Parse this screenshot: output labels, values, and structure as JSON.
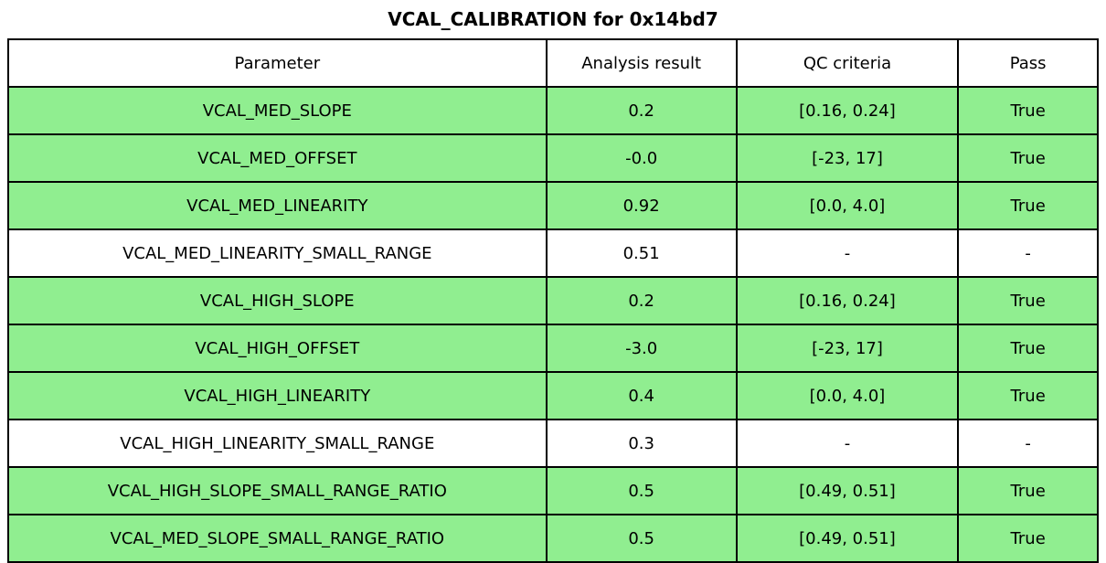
{
  "title": "VCAL_CALIBRATION for 0x14bd7",
  "colors": {
    "pass_green": "#90EE90",
    "row_default": "#FFFFFF",
    "border": "#000000",
    "text": "#000000",
    "background": "#FFFFFF"
  },
  "table": {
    "headers": [
      "Parameter",
      "Analysis result",
      "QC criteria",
      "Pass"
    ],
    "rows": [
      {
        "parameter": "VCAL_MED_SLOPE",
        "result": "0.2",
        "criteria": "[0.16, 0.24]",
        "pass": "True",
        "highlighted": true
      },
      {
        "parameter": "VCAL_MED_OFFSET",
        "result": "-0.0",
        "criteria": "[-23, 17]",
        "pass": "True",
        "highlighted": true
      },
      {
        "parameter": "VCAL_MED_LINEARITY",
        "result": "0.92",
        "criteria": "[0.0, 4.0]",
        "pass": "True",
        "highlighted": true
      },
      {
        "parameter": "VCAL_MED_LINEARITY_SMALL_RANGE",
        "result": "0.51",
        "criteria": "-",
        "pass": "-",
        "highlighted": false
      },
      {
        "parameter": "VCAL_HIGH_SLOPE",
        "result": "0.2",
        "criteria": "[0.16, 0.24]",
        "pass": "True",
        "highlighted": true
      },
      {
        "parameter": "VCAL_HIGH_OFFSET",
        "result": "-3.0",
        "criteria": "[-23, 17]",
        "pass": "True",
        "highlighted": true
      },
      {
        "parameter": "VCAL_HIGH_LINEARITY",
        "result": "0.4",
        "criteria": "[0.0, 4.0]",
        "pass": "True",
        "highlighted": true
      },
      {
        "parameter": "VCAL_HIGH_LINEARITY_SMALL_RANGE",
        "result": "0.3",
        "criteria": "-",
        "pass": "-",
        "highlighted": false
      },
      {
        "parameter": "VCAL_HIGH_SLOPE_SMALL_RANGE_RATIO",
        "result": "0.5",
        "criteria": "[0.49, 0.51]",
        "pass": "True",
        "highlighted": true
      },
      {
        "parameter": "VCAL_MED_SLOPE_SMALL_RANGE_RATIO",
        "result": "0.5",
        "criteria": "[0.49, 0.51]",
        "pass": "True",
        "highlighted": true
      }
    ]
  },
  "chart_data": {
    "type": "table",
    "title": "VCAL_CALIBRATION for 0x14bd7",
    "columns": [
      "Parameter",
      "Analysis result",
      "QC criteria",
      "Pass"
    ],
    "rows": [
      [
        "VCAL_MED_SLOPE",
        "0.2",
        "[0.16, 0.24]",
        "True"
      ],
      [
        "VCAL_MED_OFFSET",
        "-0.0",
        "[-23, 17]",
        "True"
      ],
      [
        "VCAL_MED_LINEARITY",
        "0.92",
        "[0.0, 4.0]",
        "True"
      ],
      [
        "VCAL_MED_LINEARITY_SMALL_RANGE",
        "0.51",
        "-",
        "-"
      ],
      [
        "VCAL_HIGH_SLOPE",
        "0.2",
        "[0.16, 0.24]",
        "True"
      ],
      [
        "VCAL_HIGH_OFFSET",
        "-3.0",
        "[-23, 17]",
        "True"
      ],
      [
        "VCAL_HIGH_LINEARITY",
        "0.4",
        "[0.0, 4.0]",
        "True"
      ],
      [
        "VCAL_HIGH_LINEARITY_SMALL_RANGE",
        "0.3",
        "-",
        "-"
      ],
      [
        "VCAL_HIGH_SLOPE_SMALL_RANGE_RATIO",
        "0.5",
        "[0.49, 0.51]",
        "True"
      ],
      [
        "VCAL_MED_SLOPE_SMALL_RANGE_RATIO",
        "0.5",
        "[0.49, 0.51]",
        "True"
      ]
    ],
    "highlighted_rows": [
      0,
      1,
      2,
      4,
      5,
      6,
      8,
      9
    ],
    "row_highlight_color": "#90EE90",
    "layout": {
      "grid": true,
      "header_background": "#FFFFFF",
      "text_align": "center"
    }
  }
}
